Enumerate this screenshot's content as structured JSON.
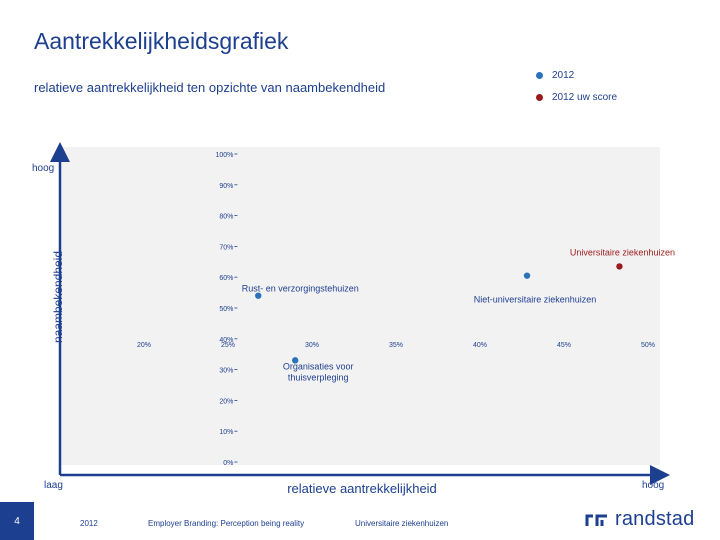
{
  "page": {
    "title": "Aantrekkelijkheidsgrafiek",
    "subtitle": "relatieve aantrekkelijkheid ten opzichte van naambekendheid",
    "page_number": "4",
    "footer_year": "2012",
    "footer_report": "Employer Branding: Perception being reality",
    "footer_sector": "Universitaire ziekenhuizen",
    "brand_name": "randstad"
  },
  "legend": [
    {
      "label": "2012",
      "color": "#2a73b8"
    },
    {
      "label": "2012 uw score",
      "color": "#9b1b1b"
    }
  ],
  "chart_data": {
    "type": "scatter",
    "title": "",
    "xlabel": "relatieve aantrekkelijkheid",
    "ylabel": "naambekendheid",
    "x_low_label": "laag",
    "x_high_label": "hoog",
    "y_high_label": "hoog",
    "xlim": [
      15,
      50
    ],
    "ylim": [
      0,
      100
    ],
    "x_cross": 0.3,
    "y_cross": 0.4,
    "x_ticks": [
      {
        "value": 20,
        "label": "20%"
      },
      {
        "value": 25,
        "label": "25%"
      },
      {
        "value": 30,
        "label": "30%"
      },
      {
        "value": 35,
        "label": "35%"
      },
      {
        "value": 40,
        "label": "40%"
      },
      {
        "value": 45,
        "label": "45%"
      },
      {
        "value": 50,
        "label": "50%"
      }
    ],
    "y_ticks": [
      {
        "value": 100,
        "label": "100%"
      },
      {
        "value": 90,
        "label": "90%"
      },
      {
        "value": 80,
        "label": "80%"
      },
      {
        "value": 70,
        "label": "70%"
      },
      {
        "value": 60,
        "label": "60%"
      },
      {
        "value": 50,
        "label": "50%"
      },
      {
        "value": 40,
        "label": "40%"
      },
      {
        "value": 30,
        "label": "30%"
      },
      {
        "value": 20,
        "label": "20%"
      },
      {
        "value": 10,
        "label": "10%"
      },
      {
        "value": 0,
        "label": "0%"
      }
    ],
    "points": [
      {
        "label": "Universitaire ziekenhuizen",
        "x": 48.3,
        "y": 63.5,
        "color": "#9b1b1b",
        "series": "2012 uw score"
      },
      {
        "label": "Niet-universitaire ziekenhuizen",
        "x": 42.8,
        "y": 60.5,
        "color": "#2a73b8",
        "series": "2012"
      },
      {
        "label": "Rust- en verzorgingstehuizen",
        "x": 26.8,
        "y": 54.0,
        "color": "#2a73b8",
        "series": "2012"
      },
      {
        "label": "Organisaties voor thuisverpleging",
        "x": 29.0,
        "y": 33.0,
        "color": "#2a73b8",
        "series": "2012"
      }
    ]
  }
}
